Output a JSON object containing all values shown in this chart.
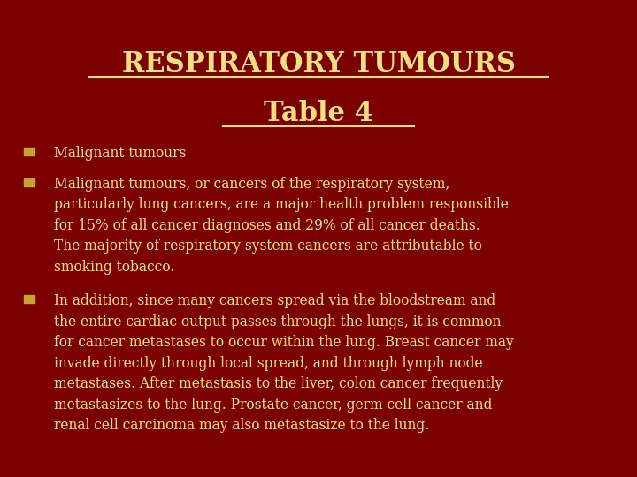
{
  "background_color": "#7B0000",
  "title_line1": "RESPIRATORY TUMOURS",
  "title_line2": "Table 4",
  "title_color": "#F0E080",
  "title_fontsize": 22,
  "text_color": "#F0E080",
  "bullet_marker_color": "#C8A030",
  "body_fontsize": 11.2,
  "bullet1": "Malignant tumours",
  "bullet2": "Malignant tumours, or cancers of the respiratory system,\nparticularly lung cancers, are a major health problem responsible\nfor 15% of all cancer diagnoses and 29% of all cancer deaths.\nThe majority of respiratory system cancers are attributable to\nsmoking tobacco.",
  "bullet3": "In addition, since many cancers spread via the bloodstream and\nthe entire cardiac output passes through the lungs, it is common\nfor cancer metastases to occur within the lung. Breast cancer may\ninvade directly through local spread, and through lymph node\nmetastases. After metastasis to the liver, colon cancer frequently\nmetastasizes to the lung. Prostate cancer, germ cell cancer and\nrenal cell carcinoma may also metastasize to the lung."
}
